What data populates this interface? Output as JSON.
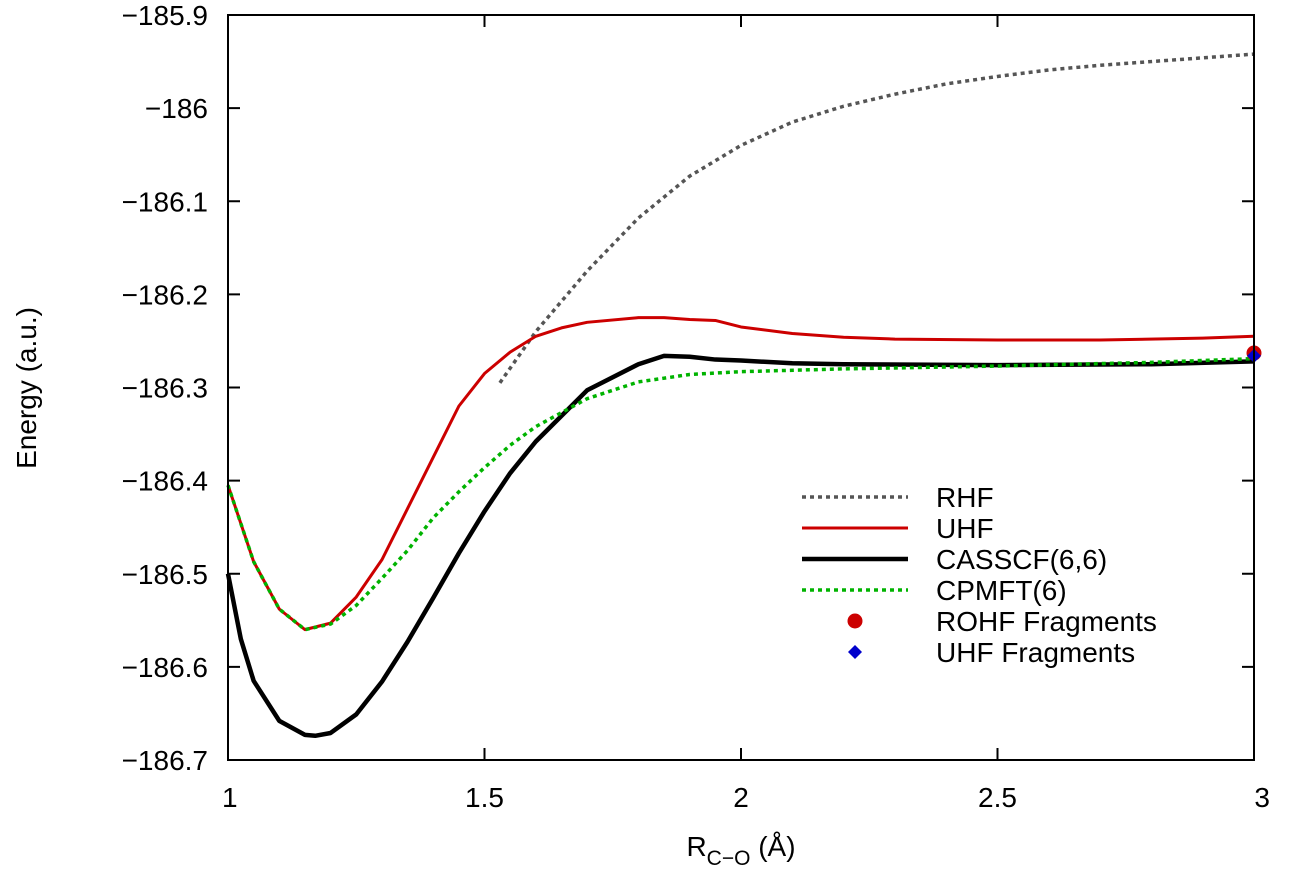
{
  "chart_data": {
    "type": "line",
    "title": "",
    "xlabel": {
      "main": "R",
      "sub": "C−O",
      "unit": " (Å)"
    },
    "ylabel": "Energy (a.u.)",
    "xlim": [
      1,
      3
    ],
    "ylim": [
      -186.7,
      -185.9
    ],
    "xticks": [
      {
        "value": 1,
        "label": "1"
      },
      {
        "value": 1.5,
        "label": "1.5"
      },
      {
        "value": 2,
        "label": "2"
      },
      {
        "value": 2.5,
        "label": "2.5"
      },
      {
        "value": 3,
        "label": "3"
      }
    ],
    "yticks": [
      {
        "value": -185.9,
        "label": "−185.9"
      },
      {
        "value": -186.0,
        "label": "−186"
      },
      {
        "value": -186.1,
        "label": "−186.1"
      },
      {
        "value": -186.2,
        "label": "−186.2"
      },
      {
        "value": -186.3,
        "label": "−186.3"
      },
      {
        "value": -186.4,
        "label": "−186.4"
      },
      {
        "value": -186.5,
        "label": "−186.5"
      },
      {
        "value": -186.6,
        "label": "−186.6"
      },
      {
        "value": -186.7,
        "label": "−186.7"
      }
    ],
    "grid": false,
    "legend_position": "bottom-right",
    "series": [
      {
        "name": "RHF",
        "color": "#555555",
        "style": "dotted",
        "x": [
          1.53,
          1.6,
          1.7,
          1.8,
          1.9,
          2.0,
          2.1,
          2.2,
          2.3,
          2.4,
          2.5,
          2.6,
          2.7,
          2.8,
          2.9,
          3.0
        ],
        "y": [
          -186.295,
          -186.24,
          -186.175,
          -186.118,
          -186.073,
          -186.04,
          -186.015,
          -185.998,
          -185.985,
          -185.974,
          -185.966,
          -185.959,
          -185.954,
          -185.95,
          -185.946,
          -185.942
        ]
      },
      {
        "name": "UHF",
        "color": "#cc0000",
        "style": "solid",
        "x": [
          1.0,
          1.05,
          1.1,
          1.15,
          1.2,
          1.25,
          1.3,
          1.35,
          1.4,
          1.45,
          1.5,
          1.55,
          1.6,
          1.65,
          1.7,
          1.8,
          1.85,
          1.9,
          1.95,
          2.0,
          2.1,
          2.2,
          2.3,
          2.5,
          2.7,
          2.9,
          3.0
        ],
        "y": [
          -186.405,
          -186.487,
          -186.538,
          -186.56,
          -186.553,
          -186.525,
          -186.485,
          -186.43,
          -186.375,
          -186.32,
          -186.285,
          -186.262,
          -186.245,
          -186.236,
          -186.23,
          -186.225,
          -186.225,
          -186.227,
          -186.228,
          -186.235,
          -186.242,
          -186.246,
          -186.248,
          -186.249,
          -186.249,
          -186.247,
          -186.245
        ]
      },
      {
        "name": "CASSCF(6,6)",
        "color": "#000000",
        "style": "solid-thick",
        "x": [
          1.0,
          1.025,
          1.05,
          1.1,
          1.15,
          1.17,
          1.2,
          1.25,
          1.3,
          1.35,
          1.4,
          1.45,
          1.5,
          1.55,
          1.6,
          1.7,
          1.8,
          1.85,
          1.9,
          1.95,
          2.0,
          2.1,
          2.2,
          2.5,
          2.8,
          3.0
        ],
        "y": [
          -186.5,
          -186.57,
          -186.615,
          -186.658,
          -186.673,
          -186.674,
          -186.671,
          -186.651,
          -186.616,
          -186.573,
          -186.526,
          -186.478,
          -186.433,
          -186.392,
          -186.358,
          -186.303,
          -186.275,
          -186.266,
          -186.267,
          -186.27,
          -186.271,
          -186.274,
          -186.275,
          -186.276,
          -186.275,
          -186.272
        ]
      },
      {
        "name": "CPMFT(6)",
        "color": "#00b300",
        "style": "dotted",
        "x": [
          1.0,
          1.05,
          1.1,
          1.15,
          1.2,
          1.25,
          1.3,
          1.35,
          1.4,
          1.45,
          1.5,
          1.55,
          1.6,
          1.7,
          1.8,
          1.9,
          2.0,
          2.2,
          2.5,
          2.8,
          3.0
        ],
        "y": [
          -186.405,
          -186.487,
          -186.538,
          -186.56,
          -186.554,
          -186.534,
          -186.505,
          -186.475,
          -186.44,
          -186.412,
          -186.386,
          -186.362,
          -186.342,
          -186.312,
          -186.294,
          -186.286,
          -186.283,
          -186.28,
          -186.277,
          -186.273,
          -186.269
        ]
      }
    ],
    "points": [
      {
        "name": "ROHF Fragments",
        "color": "#cc0000",
        "marker": "circle",
        "x": 3.0,
        "y": -186.263
      },
      {
        "name": "UHF Fragments",
        "color": "#0000cc",
        "marker": "diamond",
        "x": 3.0,
        "y": -186.266
      }
    ]
  }
}
